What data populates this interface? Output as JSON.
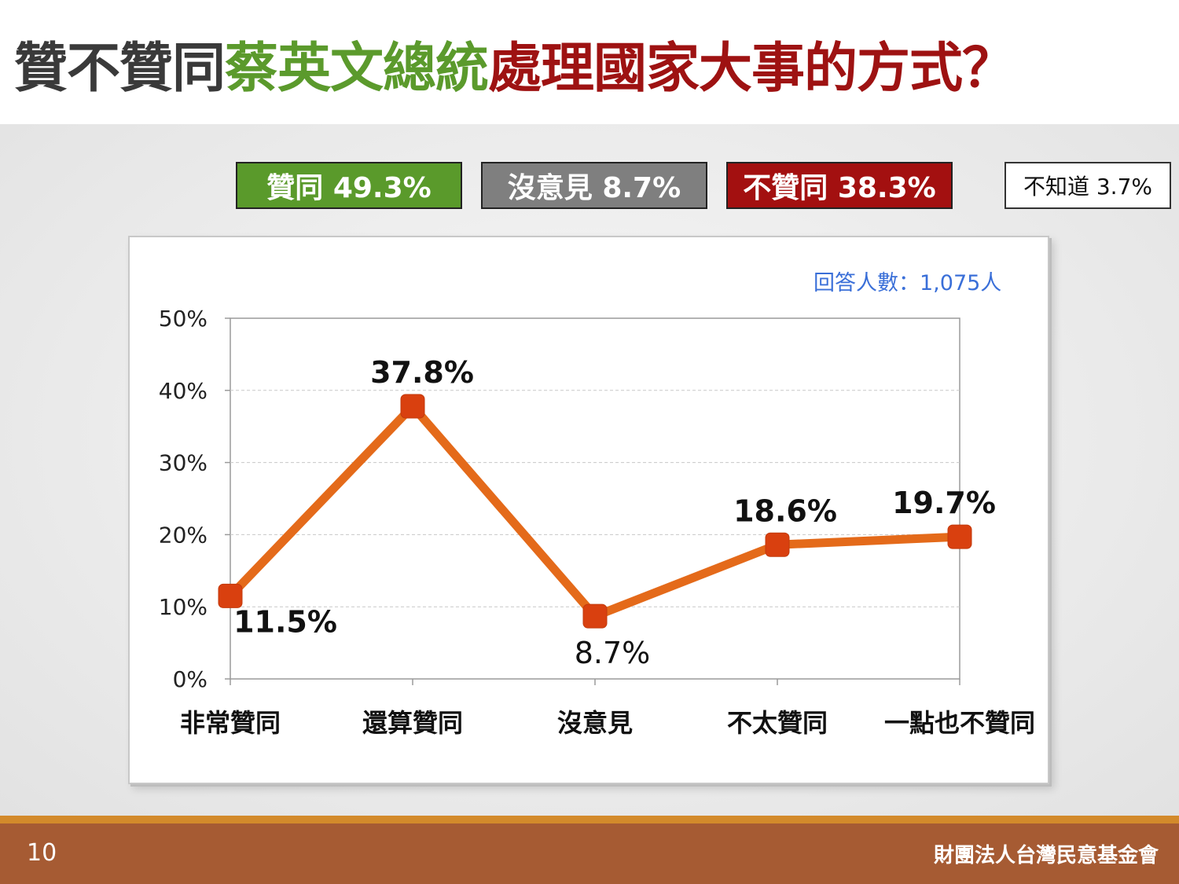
{
  "title": {
    "part1": "贊不贊同",
    "part2": "蔡英文總統",
    "part3": "處理國家大事的方式？",
    "color1": "#3a3a3a",
    "color2": "#5b9a2c",
    "color3": "#9e1212"
  },
  "summary": {
    "approve": "贊同 49.3%",
    "neutral": "沒意見 8.7%",
    "disapprove": "不贊同 38.3%",
    "unknown": "不知道 3.7%",
    "approve_color": "#5a9a2b",
    "neutral_color": "#7f7f7f",
    "disapprove_color": "#a31010"
  },
  "respondents": "回答人數：1,075人",
  "chart_data": {
    "type": "line",
    "categories": [
      "非常贊同",
      "還算贊同",
      "沒意見",
      "不太贊同",
      "一點也不贊同"
    ],
    "values": [
      11.5,
      37.8,
      8.7,
      18.6,
      19.7
    ],
    "data_labels": [
      "11.5%",
      "37.8%",
      "8.7%",
      "18.6%",
      "19.7%"
    ],
    "yticks": [
      "0%",
      "10%",
      "20%",
      "30%",
      "40%",
      "50%"
    ],
    "ylim": [
      0,
      50
    ],
    "grid": true,
    "line_color": "#e46a1a",
    "marker_color": "#d9400f"
  },
  "footer": {
    "page": "10",
    "org": "財團法人台灣民意基金會"
  }
}
